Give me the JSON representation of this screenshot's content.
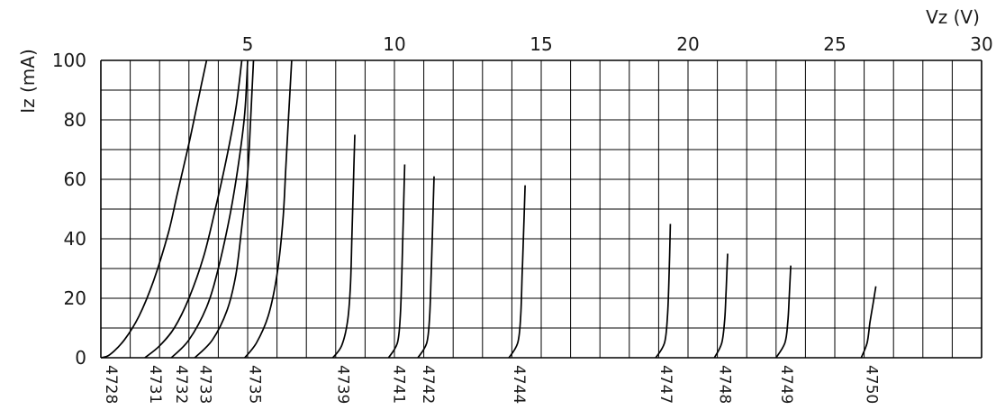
{
  "chart_data": {
    "type": "line",
    "title": "",
    "xlabel": "Vz (V)",
    "ylabel": "Iz (mA)",
    "xlim": [
      0,
      30
    ],
    "ylim": [
      0,
      100
    ],
    "x_tick_labels": [
      "5",
      "10",
      "15",
      "20",
      "25",
      "30"
    ],
    "x_tick_values": [
      5,
      10,
      15,
      20,
      25,
      30
    ],
    "y_tick_labels": [
      "0",
      "20",
      "40",
      "60",
      "80",
      "100"
    ],
    "y_tick_values": [
      0,
      20,
      40,
      60,
      80,
      100
    ],
    "grid": true,
    "legend": "none",
    "series": [
      {
        "name": "4728",
        "points": [
          [
            0.0,
            0
          ],
          [
            0.3,
            1
          ],
          [
            0.8,
            6
          ],
          [
            1.3,
            14
          ],
          [
            1.8,
            26
          ],
          [
            2.3,
            42
          ],
          [
            2.6,
            55
          ],
          [
            3.0,
            72
          ],
          [
            3.3,
            86
          ],
          [
            3.6,
            100
          ]
        ]
      },
      {
        "name": "4731",
        "points": [
          [
            1.5,
            0
          ],
          [
            2.0,
            4
          ],
          [
            2.5,
            10
          ],
          [
            3.0,
            20
          ],
          [
            3.5,
            34
          ],
          [
            3.9,
            50
          ],
          [
            4.3,
            68
          ],
          [
            4.6,
            84
          ],
          [
            4.8,
            100
          ]
        ]
      },
      {
        "name": "4732",
        "points": [
          [
            2.4,
            0
          ],
          [
            3.0,
            6
          ],
          [
            3.6,
            17
          ],
          [
            4.0,
            30
          ],
          [
            4.4,
            48
          ],
          [
            4.7,
            66
          ],
          [
            4.9,
            82
          ],
          [
            5.0,
            100
          ]
        ]
      },
      {
        "name": "4733",
        "points": [
          [
            3.2,
            0
          ],
          [
            3.8,
            6
          ],
          [
            4.3,
            16
          ],
          [
            4.6,
            28
          ],
          [
            4.8,
            44
          ],
          [
            5.0,
            62
          ],
          [
            5.1,
            80
          ],
          [
            5.2,
            100
          ]
        ]
      },
      {
        "name": "4735",
        "points": [
          [
            4.9,
            0
          ],
          [
            5.3,
            5
          ],
          [
            5.7,
            14
          ],
          [
            6.0,
            28
          ],
          [
            6.2,
            46
          ],
          [
            6.3,
            64
          ],
          [
            6.4,
            82
          ],
          [
            6.5,
            100
          ]
        ]
      },
      {
        "name": "4739",
        "points": [
          [
            7.9,
            0
          ],
          [
            8.2,
            4
          ],
          [
            8.4,
            12
          ],
          [
            8.5,
            24
          ],
          [
            8.55,
            40
          ],
          [
            8.6,
            58
          ],
          [
            8.65,
            75
          ]
        ]
      },
      {
        "name": "4741",
        "points": [
          [
            9.8,
            0
          ],
          [
            10.1,
            5
          ],
          [
            10.2,
            14
          ],
          [
            10.25,
            28
          ],
          [
            10.3,
            46
          ],
          [
            10.35,
            65
          ]
        ]
      },
      {
        "name": "4742",
        "points": [
          [
            10.8,
            0
          ],
          [
            11.1,
            5
          ],
          [
            11.2,
            14
          ],
          [
            11.25,
            28
          ],
          [
            11.3,
            44
          ],
          [
            11.35,
            61
          ]
        ]
      },
      {
        "name": "4744",
        "points": [
          [
            13.9,
            0
          ],
          [
            14.2,
            5
          ],
          [
            14.3,
            14
          ],
          [
            14.35,
            28
          ],
          [
            14.4,
            42
          ],
          [
            14.45,
            58
          ]
        ]
      },
      {
        "name": "4747",
        "points": [
          [
            18.9,
            0
          ],
          [
            19.2,
            5
          ],
          [
            19.3,
            14
          ],
          [
            19.35,
            26
          ],
          [
            19.4,
            45
          ]
        ]
      },
      {
        "name": "4748",
        "points": [
          [
            20.9,
            0
          ],
          [
            21.15,
            5
          ],
          [
            21.25,
            13
          ],
          [
            21.3,
            23
          ],
          [
            21.35,
            35
          ]
        ]
      },
      {
        "name": "4749",
        "points": [
          [
            23.0,
            0
          ],
          [
            23.3,
            5
          ],
          [
            23.4,
            12
          ],
          [
            23.45,
            21
          ],
          [
            23.5,
            31
          ]
        ]
      },
      {
        "name": "4750",
        "points": [
          [
            25.9,
            0
          ],
          [
            26.1,
            5
          ],
          [
            26.2,
            12
          ],
          [
            26.3,
            18
          ],
          [
            26.4,
            24
          ]
        ]
      }
    ]
  }
}
